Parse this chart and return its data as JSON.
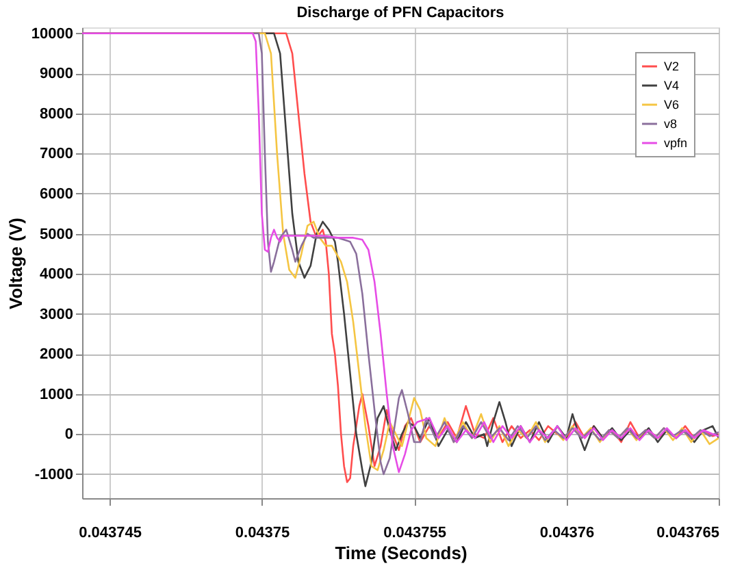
{
  "chart_data": {
    "type": "line",
    "title": "Discharge of PFN Capacitors",
    "xlabel": "Time (Seconds)",
    "ylabel": "Voltage (V)",
    "xlim": [
      0.0437441,
      0.043765
    ],
    "xticks": [
      0.043745,
      0.04375,
      0.043755,
      0.04376,
      0.043765
    ],
    "ylim": [
      -1600,
      10150
    ],
    "yticks": [
      -1000,
      0,
      1000,
      2000,
      3000,
      4000,
      5000,
      6000,
      7000,
      8000,
      9000,
      10000
    ],
    "grid": true,
    "legend": "top right",
    "marker": "none",
    "line_style": "solid",
    "series": [
      {
        "name": "V2",
        "color": "#ff4d4d",
        "x": [
          0.0437441,
          0.0437508,
          0.043751,
          0.0437512,
          0.0437514,
          0.0437516,
          0.0437518,
          0.043752,
          0.0437521,
          0.0437522,
          0.0437523,
          0.0437524,
          0.0437525,
          0.0437526,
          0.0437527,
          0.0437528,
          0.0437529,
          0.043753,
          0.0437532,
          0.0437533,
          0.0437535,
          0.0437537,
          0.0437539,
          0.0437541,
          0.0437543,
          0.0437545,
          0.0437547,
          0.0437549,
          0.0437552,
          0.0437555,
          0.0437558,
          0.0437561,
          0.0437564,
          0.0437567,
          0.043757,
          0.0437573,
          0.0437576,
          0.0437579,
          0.0437582,
          0.0437585,
          0.0437588,
          0.0437591,
          0.0437594,
          0.0437597,
          0.04376,
          0.0437603,
          0.0437606,
          0.0437609,
          0.0437612,
          0.0437615,
          0.0437618,
          0.0437621,
          0.0437624,
          0.0437627,
          0.043763,
          0.0437633,
          0.0437636,
          0.0437639,
          0.0437642,
          0.0437645,
          0.0437648,
          0.043765
        ],
        "values": [
          10000,
          10000,
          9500,
          8000,
          6500,
          5300,
          4900,
          5100,
          4800,
          4000,
          2500,
          2000,
          1200,
          0,
          -800,
          -1200,
          -1100,
          -300,
          700,
          1000,
          200,
          -800,
          -300,
          600,
          0,
          -400,
          200,
          400,
          -200,
          200,
          -100,
          300,
          -100,
          700,
          0,
          -100,
          400,
          -200,
          200,
          -100,
          100,
          -150,
          200,
          0,
          -100,
          300,
          -100,
          200,
          -100,
          100,
          -200,
          300,
          -100,
          100,
          -100,
          100,
          -100,
          200,
          -100,
          100,
          -50,
          0
        ]
      },
      {
        "name": "V4",
        "color": "#404040",
        "x": [
          0.0437441,
          0.0437504,
          0.0437506,
          0.0437508,
          0.043751,
          0.0437512,
          0.0437514,
          0.0437516,
          0.0437518,
          0.043752,
          0.0437522,
          0.0437524,
          0.0437525,
          0.0437527,
          0.0437529,
          0.0437531,
          0.0437533,
          0.0437534,
          0.0437536,
          0.0437538,
          0.043754,
          0.0437542,
          0.0437544,
          0.0437546,
          0.0437548,
          0.043755,
          0.0437552,
          0.0437555,
          0.0437558,
          0.0437561,
          0.0437564,
          0.0437567,
          0.043757,
          0.0437573,
          0.0437574,
          0.0437576,
          0.0437578,
          0.043758,
          0.0437582,
          0.0437585,
          0.0437588,
          0.0437591,
          0.0437594,
          0.0437597,
          0.04376,
          0.0437602,
          0.0437604,
          0.0437606,
          0.0437609,
          0.0437612,
          0.0437615,
          0.0437618,
          0.0437621,
          0.0437624,
          0.0437627,
          0.043763,
          0.0437633,
          0.0437636,
          0.0437639,
          0.0437642,
          0.0437645,
          0.0437648,
          0.043765
        ],
        "values": [
          10000,
          10000,
          9500,
          7500,
          5500,
          4300,
          3900,
          4200,
          5000,
          5300,
          5100,
          4800,
          4300,
          3000,
          1500,
          0,
          -900,
          -1300,
          -700,
          400,
          700,
          100,
          -400,
          0,
          300,
          200,
          -100,
          400,
          -300,
          100,
          -200,
          300,
          -100,
          0,
          -300,
          300,
          800,
          300,
          -300,
          200,
          -200,
          300,
          -200,
          200,
          -100,
          500,
          0,
          -400,
          200,
          -100,
          150,
          -150,
          100,
          -100,
          150,
          -200,
          100,
          -100,
          100,
          -200,
          100,
          200,
          -100
        ]
      },
      {
        "name": "V6",
        "color": "#f5c542",
        "x": [
          0.0437441,
          0.0437501,
          0.0437503,
          0.0437505,
          0.0437507,
          0.0437509,
          0.0437511,
          0.0437513,
          0.0437515,
          0.0437517,
          0.0437519,
          0.0437521,
          0.0437523,
          0.0437526,
          0.0437528,
          0.043753,
          0.0437532,
          0.0437534,
          0.0437536,
          0.0437538,
          0.043754,
          0.0437542,
          0.0437544,
          0.0437546,
          0.0437548,
          0.043755,
          0.0437552,
          0.0437554,
          0.0437557,
          0.043756,
          0.0437563,
          0.0437566,
          0.0437569,
          0.0437572,
          0.0437575,
          0.0437578,
          0.0437581,
          0.0437584,
          0.0437587,
          0.043759,
          0.0437593,
          0.0437596,
          0.0437599,
          0.0437602,
          0.0437605,
          0.0437608,
          0.0437611,
          0.0437614,
          0.0437617,
          0.043762,
          0.0437623,
          0.0437626,
          0.0437629,
          0.0437632,
          0.0437635,
          0.0437638,
          0.0437641,
          0.0437644,
          0.0437647,
          0.043765
        ],
        "values": [
          10000,
          10000,
          9500,
          7000,
          5000,
          4100,
          3900,
          4500,
          5200,
          5300,
          4900,
          4700,
          4700,
          4300,
          3800,
          2800,
          1500,
          200,
          -800,
          -900,
          -400,
          300,
          0,
          -300,
          300,
          900,
          600,
          -100,
          -300,
          400,
          -200,
          300,
          -100,
          500,
          -200,
          200,
          -300,
          100,
          -100,
          300,
          -200,
          100,
          -150,
          200,
          -100,
          150,
          -200,
          100,
          -100,
          150,
          -150,
          100,
          -100,
          150,
          -150,
          150,
          -200,
          100,
          -250,
          -100
        ]
      },
      {
        "name": "v8",
        "color": "#8a6f9c",
        "x": [
          0.0437441,
          0.0437499,
          0.04375,
          0.0437501,
          0.0437502,
          0.0437503,
          0.0437504,
          0.0437506,
          0.0437508,
          0.043751,
          0.0437511,
          0.0437513,
          0.0437515,
          0.0437517,
          0.043752,
          0.0437525,
          0.0437529,
          0.0437531,
          0.0437533,
          0.0437535,
          0.0437537,
          0.0437539,
          0.043754,
          0.0437542,
          0.0437544,
          0.0437545,
          0.0437546,
          0.0437548,
          0.043755,
          0.0437552,
          0.0437554,
          0.0437557,
          0.043756,
          0.0437563,
          0.0437566,
          0.0437569,
          0.0437572,
          0.0437575,
          0.0437578,
          0.0437581,
          0.0437584,
          0.0437587,
          0.043759,
          0.0437593,
          0.0437596,
          0.0437599,
          0.0437602,
          0.0437605,
          0.0437608,
          0.0437611,
          0.0437614,
          0.0437617,
          0.043762,
          0.0437623,
          0.0437626,
          0.0437629,
          0.0437632,
          0.0437635,
          0.0437638,
          0.0437641,
          0.0437644,
          0.0437647,
          0.043765
        ],
        "values": [
          10000,
          10000,
          9500,
          7000,
          4800,
          4050,
          4300,
          4900,
          5100,
          4600,
          4300,
          4700,
          5000,
          4900,
          4900,
          4900,
          4800,
          4500,
          3500,
          2000,
          600,
          -700,
          -1000,
          -600,
          400,
          900,
          1100,
          500,
          -200,
          -200,
          400,
          -100,
          300,
          -200,
          200,
          -100,
          300,
          -100,
          150,
          -150,
          200,
          -100,
          200,
          -150,
          100,
          -100,
          150,
          -100,
          100,
          -150,
          100,
          -100,
          150,
          -100,
          100,
          -100,
          150,
          -50,
          100,
          -100,
          100,
          -50,
          50
        ]
      },
      {
        "name": "vpfn",
        "color": "#e64ce6",
        "x": [
          0.0437441,
          0.0437497,
          0.0437498,
          0.0437499,
          0.04375,
          0.0437501,
          0.0437502,
          0.0437503,
          0.0437504,
          0.0437505,
          0.0437506,
          0.0437507,
          0.043751,
          0.0437515,
          0.043752,
          0.0437525,
          0.043753,
          0.0437533,
          0.0437535,
          0.0437537,
          0.0437539,
          0.0437541,
          0.0437543,
          0.0437545,
          0.0437547,
          0.0437549,
          0.0437551,
          0.0437555,
          0.0437558,
          0.0437561,
          0.0437564,
          0.0437567,
          0.043757,
          0.0437573,
          0.0437576,
          0.0437579,
          0.0437582,
          0.0437585,
          0.0437588,
          0.0437591,
          0.0437594,
          0.0437597,
          0.04376,
          0.0437603,
          0.0437606,
          0.0437609,
          0.0437612,
          0.0437615,
          0.0437618,
          0.0437621,
          0.0437624,
          0.0437627,
          0.043763,
          0.0437633,
          0.0437636,
          0.0437639,
          0.0437642,
          0.0437645,
          0.0437648,
          0.043765
        ],
        "values": [
          10000,
          10000,
          9800,
          8000,
          5500,
          4600,
          4550,
          4900,
          5100,
          4900,
          4800,
          4950,
          4950,
          4950,
          4950,
          4900,
          4900,
          4850,
          4600,
          3800,
          2500,
          1000,
          -300,
          -950,
          -500,
          100,
          300,
          400,
          -100,
          200,
          -200,
          100,
          -100,
          300,
          -200,
          200,
          -100,
          200,
          -200,
          100,
          -100,
          200,
          -150,
          150,
          -100,
          150,
          -150,
          100,
          -100,
          150,
          -150,
          100,
          -100,
          150,
          -100,
          100,
          -100,
          100,
          0,
          -50
        ]
      }
    ]
  }
}
